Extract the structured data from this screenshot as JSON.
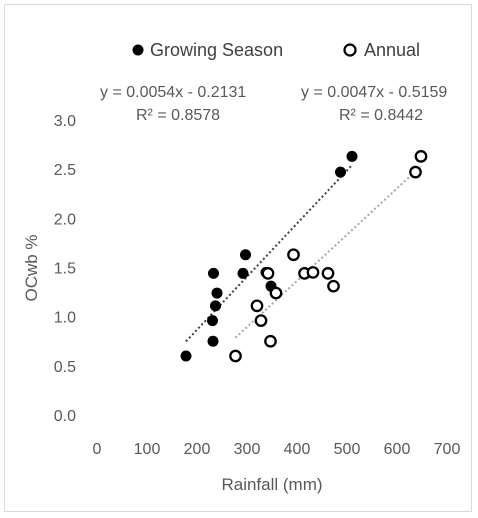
{
  "chart_data": {
    "type": "scatter",
    "title": "",
    "xlabel": "Rainfall (mm)",
    "ylabel": "OCwb %",
    "xlim": [
      0,
      700
    ],
    "ylim": [
      0,
      3.0
    ],
    "x_ticks": [
      "0",
      "100",
      "200",
      "300",
      "400",
      "500",
      "600",
      "700"
    ],
    "y_ticks": [
      "0.0",
      "0.5",
      "1.0",
      "1.5",
      "2.0",
      "2.5",
      "3.0"
    ],
    "grid": false,
    "legend_position": "top",
    "series": [
      {
        "name": "Growing Season",
        "marker": "filled-circle",
        "color": "#000000",
        "trendline_color": "#404040",
        "points": [
          {
            "x": 178,
            "y": 0.6
          },
          {
            "x": 232,
            "y": 0.75
          },
          {
            "x": 231,
            "y": 0.96
          },
          {
            "x": 237,
            "y": 1.11
          },
          {
            "x": 240,
            "y": 1.24
          },
          {
            "x": 233,
            "y": 1.44
          },
          {
            "x": 292,
            "y": 1.44
          },
          {
            "x": 297,
            "y": 1.63
          },
          {
            "x": 338,
            "y": 1.45
          },
          {
            "x": 348,
            "y": 1.31
          },
          {
            "x": 487,
            "y": 2.47
          },
          {
            "x": 510,
            "y": 2.63
          }
        ],
        "equation": "y = 0.0054x - 0.2131",
        "r2": "R² = 0.8578",
        "trend": {
          "slope": 0.0054,
          "intercept": -0.2131,
          "x_from": 178,
          "x_to": 510
        }
      },
      {
        "name": "Annual",
        "marker": "open-circle",
        "color": "#000000",
        "trendline_color": "#a6a6a6",
        "points": [
          {
            "x": 277,
            "y": 0.6
          },
          {
            "x": 347,
            "y": 0.75
          },
          {
            "x": 328,
            "y": 0.96
          },
          {
            "x": 320,
            "y": 1.11
          },
          {
            "x": 358,
            "y": 1.24
          },
          {
            "x": 342,
            "y": 1.44
          },
          {
            "x": 415,
            "y": 1.44
          },
          {
            "x": 432,
            "y": 1.45
          },
          {
            "x": 462,
            "y": 1.44
          },
          {
            "x": 473,
            "y": 1.31
          },
          {
            "x": 393,
            "y": 1.63
          },
          {
            "x": 637,
            "y": 2.47
          },
          {
            "x": 648,
            "y": 2.63
          }
        ],
        "equation": "y = 0.0047x - 0.5159",
        "r2": "R² = 0.8442",
        "trend": {
          "slope": 0.0047,
          "intercept": -0.5159,
          "x_from": 277,
          "x_to": 648
        }
      }
    ]
  }
}
